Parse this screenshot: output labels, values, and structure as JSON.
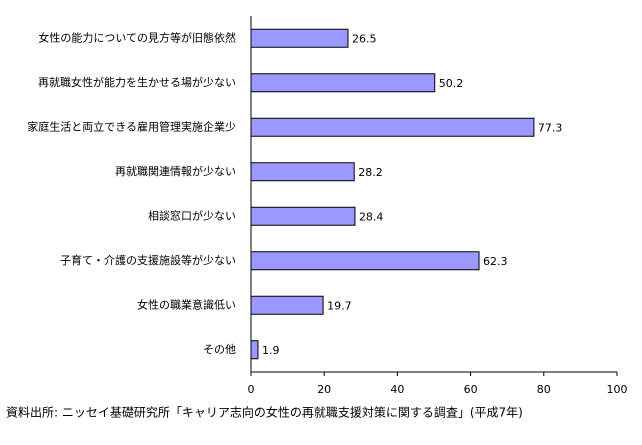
{
  "chart_data": {
    "type": "bar",
    "orientation": "horizontal",
    "categories": [
      "女性の能力についての見方等が旧態依然",
      "再就職女性が能力を生かせる場が少ない",
      "家庭生活と両立できる雇用管理実施企業少",
      "再就職関連情報が少ない",
      "相談窓口が少ない",
      "子育て・介護の支援施設等が少ない",
      "女性の職業意識低い",
      "その他"
    ],
    "values": [
      26.5,
      50.2,
      77.3,
      28.2,
      28.4,
      62.3,
      19.7,
      1.9
    ],
    "color": "#9999ff",
    "xlim": [
      0,
      100
    ],
    "xticks": [
      0,
      20,
      40,
      60,
      80,
      100
    ],
    "grid": false,
    "source": "資料出所: ニッセイ基礎研究所「キャリア志向の女性の再就職支援対策に関する調査」(平成7年)"
  }
}
